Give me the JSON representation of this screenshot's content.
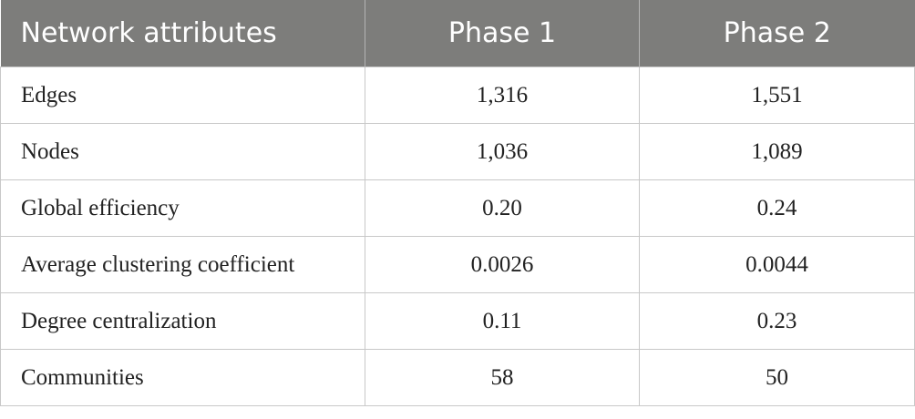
{
  "table": {
    "header": [
      "Network attributes",
      "Phase 1",
      "Phase 2"
    ],
    "rows": [
      [
        "Edges",
        "1,316",
        "1,551"
      ],
      [
        "Nodes",
        "1,036",
        "1,089"
      ],
      [
        "Global efficiency",
        "0.20",
        "0.24"
      ],
      [
        "Average clustering coefficient",
        "0.0026",
        "0.0044"
      ],
      [
        "Degree centralization",
        "0.11",
        "0.23"
      ],
      [
        "Communities",
        "58",
        "50"
      ]
    ]
  }
}
